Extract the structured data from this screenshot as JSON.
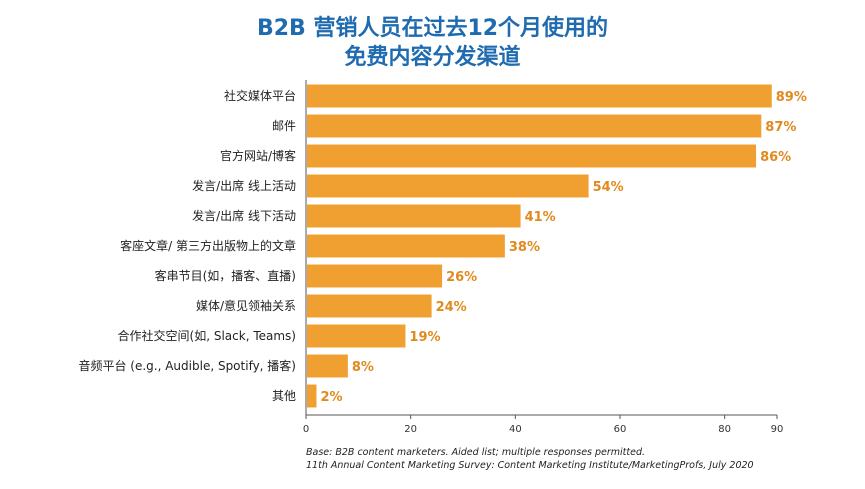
{
  "chart_data": {
    "type": "bar",
    "orientation": "horizontal",
    "title_line1": "B2B 营销人员在过去12个月使用的",
    "title_line2": "免费内容分发渠道",
    "categories": [
      "社交媒体平台",
      "邮件",
      "官方网站/博客",
      "发言/出席 线上活动",
      "发言/出席 线下活动",
      "客座文章/ 第三方出版物上的文章",
      "客串节目(如，播客、直播)",
      "媒体/意见领袖关系",
      "合作社交空间(如, Slack, Teams)",
      "音频平台 (e.g., Audible, Spotify, 播客)",
      "其他"
    ],
    "values": [
      89,
      87,
      86,
      54,
      41,
      38,
      26,
      24,
      19,
      8,
      2
    ],
    "value_labels": [
      "89%",
      "87%",
      "86%",
      "54%",
      "41%",
      "38%",
      "26%",
      "24%",
      "19%",
      "8%",
      "2%"
    ],
    "xlim": [
      0,
      90
    ],
    "xticks": [
      0,
      20,
      40,
      60,
      80,
      90
    ],
    "bar_color": "#f0a030",
    "label_color": "#e08a1e",
    "title_color": "#1f6bb0"
  },
  "footnotes": {
    "base": "Base: B2B content marketers. Aided list; multiple responses permitted.",
    "source": "11th Annual Content Marketing Survey: Content Marketing Institute/MarketingProfs, July 2020"
  }
}
